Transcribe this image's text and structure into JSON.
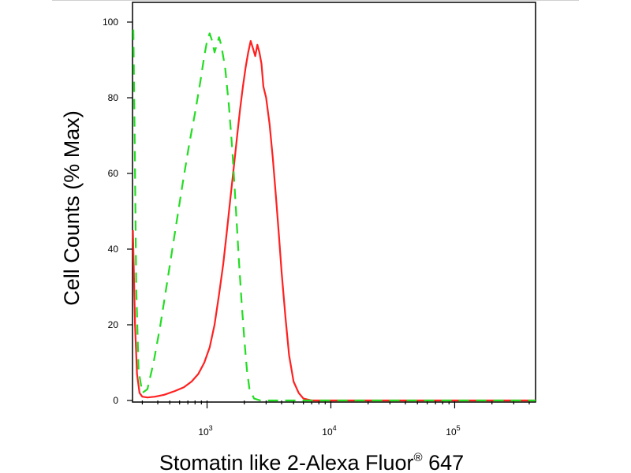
{
  "chart_data": {
    "type": "line",
    "xlabel": "Stomatin like 2-Alexa Fluor",
    "xlabel_sup": "®",
    "xlabel_suffix": " 647",
    "ylabel": "Cell Counts (% Max)",
    "x_scale": "log",
    "xlim": [
      250,
      450000
    ],
    "ylim": [
      0,
      100
    ],
    "yticks": [
      0,
      20,
      40,
      60,
      80,
      100
    ],
    "xtick_labels": [
      {
        "base": "10",
        "exp": "3",
        "value": 1000
      },
      {
        "base": "10",
        "exp": "4",
        "value": 10000
      },
      {
        "base": "10",
        "exp": "5",
        "value": 100000
      }
    ],
    "series": [
      {
        "color": "#ff2020",
        "style": "solid",
        "x": [
          252,
          262,
          272,
          285,
          300,
          330,
          380,
          450,
          550,
          650,
          750,
          850,
          950,
          1050,
          1150,
          1250,
          1350,
          1450,
          1550,
          1650,
          1750,
          1850,
          1950,
          2050,
          2150,
          2250,
          2350,
          2450,
          2550,
          2650,
          2750,
          2850,
          3000,
          3200,
          3400,
          3600,
          3800,
          4000,
          4300,
          4600,
          5000,
          5500,
          6000,
          7000,
          10000,
          30000,
          100000,
          450000
        ],
        "y": [
          45,
          20,
          7,
          2,
          1,
          0.8,
          1,
          1.5,
          2.5,
          3.5,
          5,
          7,
          10,
          14,
          20,
          28,
          36,
          45,
          54,
          62,
          70,
          77,
          83,
          88,
          92,
          95,
          93,
          91,
          94,
          92,
          89,
          83,
          80,
          73,
          64,
          54,
          44,
          34,
          22,
          12,
          5,
          2,
          0.5,
          0,
          0,
          0,
          0,
          0
        ]
      },
      {
        "color": "#22dd22",
        "style": "dashed",
        "x": [
          254,
          260,
          268,
          280,
          300,
          330,
          370,
          420,
          480,
          560,
          640,
          720,
          800,
          880,
          950,
          1000,
          1050,
          1100,
          1150,
          1200,
          1250,
          1300,
          1400,
          1500,
          1600,
          1700,
          1800,
          1900,
          2000,
          2100,
          2200,
          2400,
          2700,
          3000,
          450000
        ],
        "y": [
          98,
          70,
          30,
          8,
          2,
          3,
          10,
          20,
          32,
          46,
          58,
          68,
          76,
          84,
          91,
          95,
          97,
          95,
          92,
          94,
          96,
          94,
          88,
          78,
          66,
          52,
          38,
          26,
          16,
          8,
          3,
          0.5,
          0,
          0,
          0
        ]
      }
    ]
  }
}
